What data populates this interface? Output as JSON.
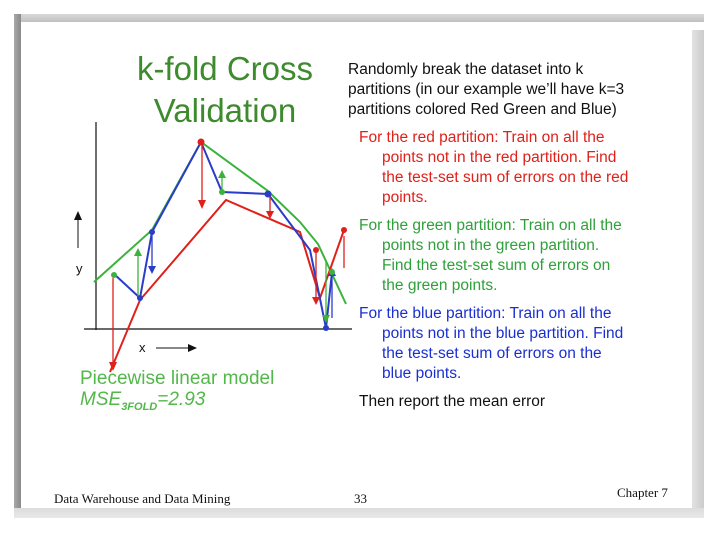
{
  "slide": {
    "title_line1": "k-fold Cross",
    "title_line2": "Validation"
  },
  "text": {
    "intro_first": "Randomly break the dataset into k",
    "intro_rest1": "partitions (in our example we’ll have k=3",
    "intro_rest2": "partitions colored Red Green and Blue)",
    "red_first": "For the red partition: Train on all the",
    "red_rest1": "points not in the red partition. Find",
    "red_rest2": "the test-set sum of errors on the red",
    "red_rest3": "points.",
    "green_first": "For the green partition: Train on all the",
    "green_rest1": "points not in the green partition.",
    "green_rest2": "Find the test-set sum of errors on",
    "green_rest3": "the green points.",
    "blue_first": "For the blue partition: Train on all the",
    "blue_rest1": "points not in the blue partition. Find",
    "blue_rest2": "the test-set sum of errors on the",
    "blue_rest3": "blue points.",
    "final": "Then report the mean error"
  },
  "model": {
    "label": "Piecewise linear model",
    "mse_prefix": "MSE",
    "mse_sub": "3FOLD",
    "mse_value": "=2.93"
  },
  "plot": {
    "y_label": "y",
    "x_label": "x"
  },
  "footer": {
    "left": "Data Warehouse and Data Mining",
    "page": "33",
    "right": "Chapter 7"
  },
  "colors": {
    "title": "#3e8a2e",
    "red": "#e0201a",
    "green": "#2fa03a",
    "blue": "#1a2fd0"
  }
}
